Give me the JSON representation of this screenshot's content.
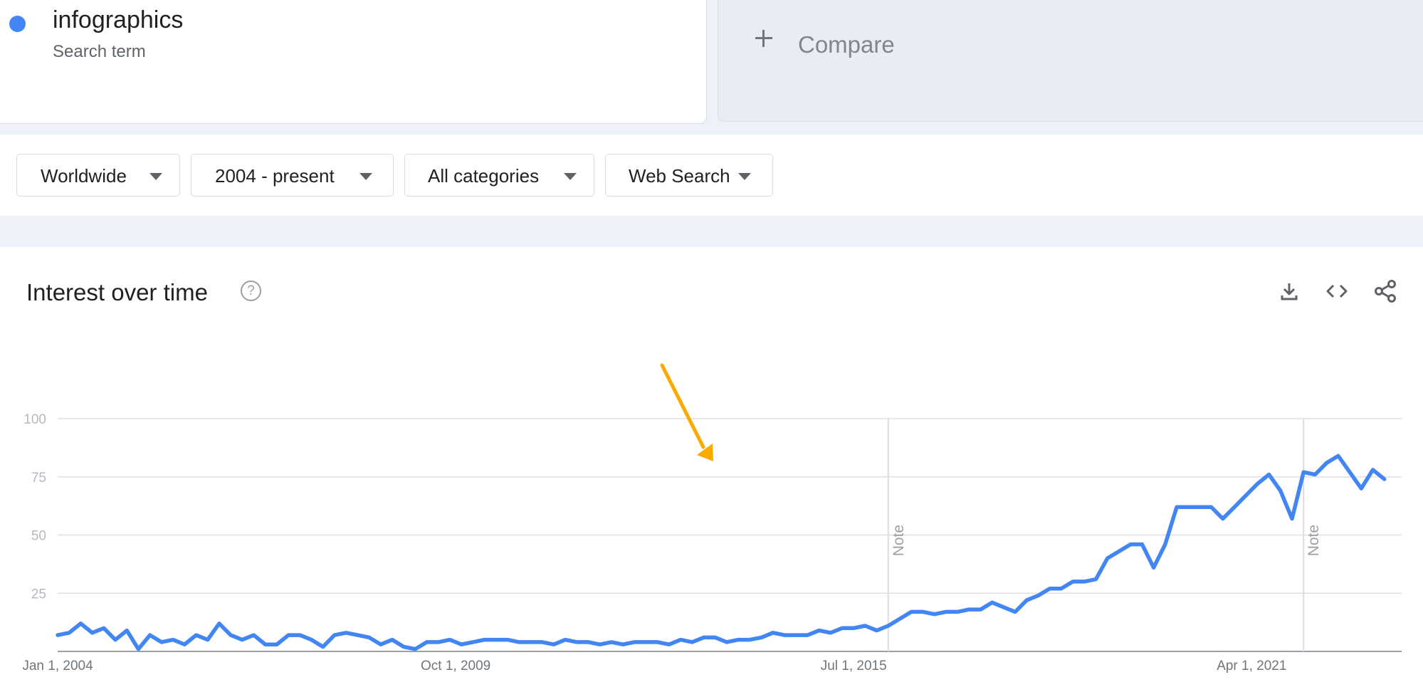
{
  "search_term": {
    "name": "infographics",
    "subtitle": "Search term",
    "color": "#4285f4"
  },
  "compare": {
    "label": "Compare"
  },
  "filters": [
    {
      "label": "Worldwide"
    },
    {
      "label": "2004 - present"
    },
    {
      "label": "All categories"
    },
    {
      "label": "Web Search"
    }
  ],
  "chart_panel": {
    "title": "Interest over time",
    "icons": [
      "help-icon",
      "download-icon",
      "embed-code-icon",
      "share-icon"
    ]
  },
  "chart_data": {
    "type": "line",
    "title": "Interest over time",
    "xlabel": "",
    "ylabel": "",
    "ylim": [
      0,
      100
    ],
    "yticks": [
      25,
      50,
      75,
      100
    ],
    "x_ticks": [
      "Jan 1, 2004",
      "Oct 1, 2009",
      "Jul 1, 2015",
      "Apr 1, 2021"
    ],
    "xlim": [
      "2004-01",
      "2023-06"
    ],
    "grid": true,
    "series": [
      {
        "name": "infographics",
        "color": "#4285f4",
        "points": [
          [
            "2004-01",
            7
          ],
          [
            "2004-03",
            8
          ],
          [
            "2004-05",
            12
          ],
          [
            "2004-07",
            8
          ],
          [
            "2004-09",
            10
          ],
          [
            "2004-11",
            5
          ],
          [
            "2005-01",
            9
          ],
          [
            "2005-03",
            1
          ],
          [
            "2005-05",
            7
          ],
          [
            "2005-07",
            4
          ],
          [
            "2005-09",
            5
          ],
          [
            "2005-11",
            3
          ],
          [
            "2006-01",
            7
          ],
          [
            "2006-03",
            5
          ],
          [
            "2006-05",
            12
          ],
          [
            "2006-07",
            7
          ],
          [
            "2006-09",
            5
          ],
          [
            "2006-11",
            7
          ],
          [
            "2007-01",
            3
          ],
          [
            "2007-03",
            3
          ],
          [
            "2007-05",
            7
          ],
          [
            "2007-07",
            7
          ],
          [
            "2007-09",
            5
          ],
          [
            "2007-11",
            2
          ],
          [
            "2008-01",
            7
          ],
          [
            "2008-03",
            8
          ],
          [
            "2008-05",
            7
          ],
          [
            "2008-07",
            6
          ],
          [
            "2008-09",
            3
          ],
          [
            "2008-11",
            5
          ],
          [
            "2009-01",
            2
          ],
          [
            "2009-03",
            1
          ],
          [
            "2009-05",
            4
          ],
          [
            "2009-07",
            4
          ],
          [
            "2009-09",
            5
          ],
          [
            "2009-11",
            3
          ],
          [
            "2010-01",
            4
          ],
          [
            "2010-03",
            5
          ],
          [
            "2010-05",
            5
          ],
          [
            "2010-07",
            5
          ],
          [
            "2010-09",
            4
          ],
          [
            "2010-11",
            4
          ],
          [
            "2011-01",
            4
          ],
          [
            "2011-03",
            3
          ],
          [
            "2011-05",
            5
          ],
          [
            "2011-07",
            4
          ],
          [
            "2011-09",
            4
          ],
          [
            "2011-11",
            3
          ],
          [
            "2012-01",
            4
          ],
          [
            "2012-03",
            3
          ],
          [
            "2012-05",
            4
          ],
          [
            "2012-07",
            4
          ],
          [
            "2012-09",
            4
          ],
          [
            "2012-11",
            3
          ],
          [
            "2013-01",
            5
          ],
          [
            "2013-03",
            4
          ],
          [
            "2013-05",
            6
          ],
          [
            "2013-07",
            6
          ],
          [
            "2013-09",
            4
          ],
          [
            "2013-11",
            5
          ],
          [
            "2014-01",
            5
          ],
          [
            "2014-03",
            6
          ],
          [
            "2014-05",
            8
          ],
          [
            "2014-07",
            7
          ],
          [
            "2014-09",
            7
          ],
          [
            "2014-11",
            7
          ],
          [
            "2015-01",
            9
          ],
          [
            "2015-03",
            8
          ],
          [
            "2015-05",
            10
          ],
          [
            "2015-07",
            10
          ],
          [
            "2015-09",
            11
          ],
          [
            "2015-11",
            9
          ],
          [
            "2016-01",
            11
          ],
          [
            "2016-03",
            14
          ],
          [
            "2016-05",
            17
          ],
          [
            "2016-07",
            17
          ],
          [
            "2016-09",
            16
          ],
          [
            "2016-11",
            17
          ],
          [
            "2017-01",
            17
          ],
          [
            "2017-03",
            18
          ],
          [
            "2017-05",
            18
          ],
          [
            "2017-07",
            21
          ],
          [
            "2017-09",
            19
          ],
          [
            "2017-11",
            17
          ],
          [
            "2018-01",
            22
          ],
          [
            "2018-03",
            24
          ],
          [
            "2018-05",
            27
          ],
          [
            "2018-07",
            27
          ],
          [
            "2018-09",
            30
          ],
          [
            "2018-11",
            30
          ],
          [
            "2019-01",
            31
          ],
          [
            "2019-03",
            40
          ],
          [
            "2019-05",
            43
          ],
          [
            "2019-07",
            46
          ],
          [
            "2019-09",
            46
          ],
          [
            "2019-11",
            36
          ],
          [
            "2020-01",
            46
          ],
          [
            "2020-03",
            62
          ],
          [
            "2020-05",
            62
          ],
          [
            "2020-07",
            62
          ],
          [
            "2020-09",
            62
          ],
          [
            "2020-11",
            57
          ],
          [
            "2021-01",
            62
          ],
          [
            "2021-03",
            67
          ],
          [
            "2021-05",
            72
          ],
          [
            "2021-07",
            76
          ],
          [
            "2021-09",
            69
          ],
          [
            "2021-11",
            57
          ],
          [
            "2022-01",
            77
          ],
          [
            "2022-03",
            76
          ],
          [
            "2022-05",
            81
          ],
          [
            "2022-07",
            84
          ],
          [
            "2022-09",
            77
          ],
          [
            "2022-11",
            70
          ],
          [
            "2023-01",
            78
          ],
          [
            "2023-03",
            74
          ]
        ]
      }
    ],
    "annotations": [
      "Note",
      "Note"
    ]
  },
  "colors": {
    "line": "#4285f4",
    "arrow": "#f9ab00",
    "grid": "#e0e0e0",
    "band": "#edf1f8"
  }
}
